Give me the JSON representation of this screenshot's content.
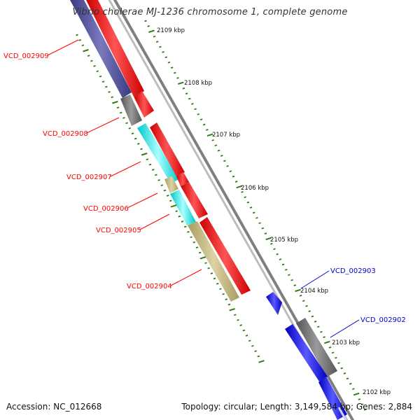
{
  "title": "Vibrio cholerae MJ-1236 chromosome 1, complete genome",
  "footer": {
    "accession": "Accession: NC_012668",
    "summary": "Topology: circular; Length: 3,149,584 bp; Genes: 2,884"
  },
  "colors": {
    "forward_cds": "#ff0000",
    "reverse_cds_purple": "#4b4a93",
    "reverse_cds_cyan": "#00e5e5",
    "reverse_cds_khaki": "#c2b67a",
    "gray_feature": "#666666",
    "blue_cds": "#0000ff",
    "tick_green": "#2e7d12",
    "backbone": "#888888",
    "left_label": "#ff0000",
    "right_label": "#0000cc"
  },
  "tick_labels": [
    "2109 kbp",
    "2108 kbp",
    "2107 kbp",
    "2106 kbp",
    "2105 kbp",
    "2104 kbp",
    "2103 kbp",
    "2102 kbp"
  ],
  "gene_labels_left": [
    "VCD_002909",
    "VCD_002908",
    "VCD_002907",
    "VCD_002906",
    "VCD_002905",
    "VCD_002904"
  ],
  "gene_labels_right": [
    "VCD_002903",
    "VCD_002902"
  ]
}
